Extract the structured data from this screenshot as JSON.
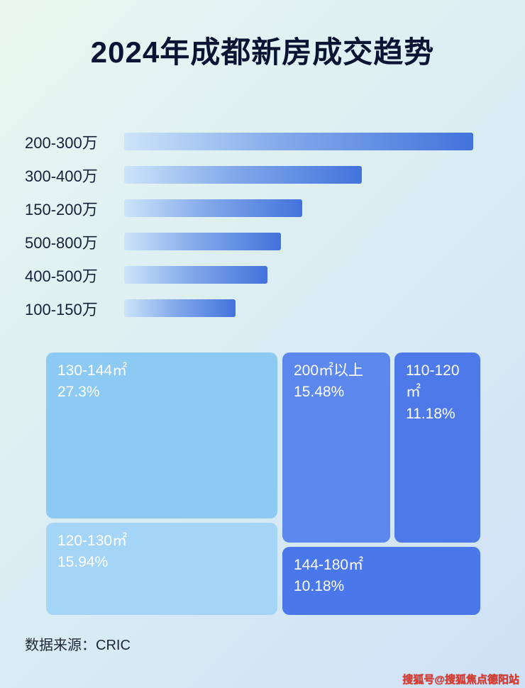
{
  "title": "2024年成都新房成交趋势",
  "chart_data": [
    {
      "type": "bar",
      "orientation": "horizontal",
      "title": "2024年成都新房成交趋势",
      "categories": [
        "200-300万",
        "300-400万",
        "150-200万",
        "500-800万",
        "400-500万",
        "100-150万"
      ],
      "bar_length_pct": [
        100,
        68,
        51,
        45,
        41,
        32
      ],
      "xlabel": "",
      "ylabel": ""
    },
    {
      "type": "treemap",
      "items": [
        {
          "label": "130-144㎡",
          "value": "27.3%",
          "color": "#8ccaf3"
        },
        {
          "label": "120-130㎡",
          "value": "15.94%",
          "color": "#a4d4f6"
        },
        {
          "label": "200㎡以上",
          "value": "15.48%",
          "color": "#5c88ee"
        },
        {
          "label": "110-120㎡",
          "value": "11.18%",
          "color": "#4e7ae9"
        },
        {
          "label": "144-180㎡",
          "value": "10.18%",
          "color": "#4a78ea"
        }
      ]
    }
  ],
  "colors": {
    "bar_gradient_start": "#cde4f9",
    "bar_gradient_end": "#4273dc",
    "background_top": "#eaf7f0",
    "background_bottom": "#cfe1f6",
    "title_color": "#0c1433",
    "watermark_color": "#e03a30"
  },
  "footer": {
    "source": "数据来源：CRIC"
  },
  "watermark": {
    "text": "搜狐号@搜狐焦点德阳站"
  }
}
